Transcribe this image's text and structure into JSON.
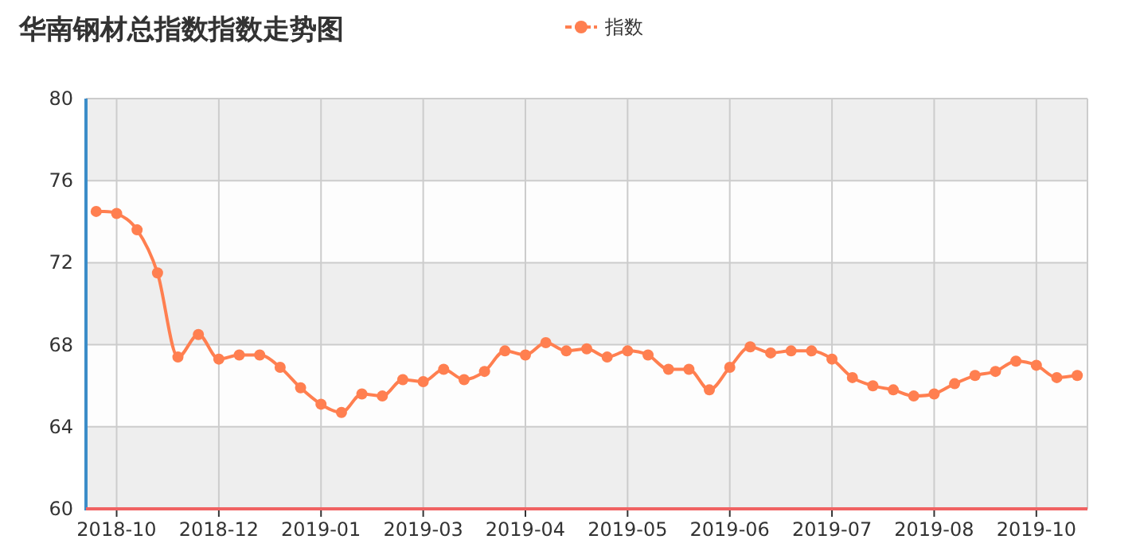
{
  "chart_data": {
    "type": "line",
    "title": "华南钢材总指数指数走势图",
    "categories": [
      null,
      "2018-10",
      null,
      null,
      null,
      null,
      "2018-12",
      null,
      null,
      null,
      null,
      "2019-01",
      null,
      null,
      null,
      null,
      "2019-03",
      null,
      null,
      null,
      null,
      "2019-04",
      null,
      null,
      null,
      null,
      "2019-05",
      null,
      null,
      null,
      null,
      "2019-06",
      null,
      null,
      null,
      null,
      "2019-07",
      null,
      null,
      null,
      null,
      "2019-08",
      null,
      null,
      null,
      null,
      "2019-10",
      null,
      null
    ],
    "series": [
      {
        "name": "指数",
        "color": "#ff7f50",
        "values": [
          74.5,
          74.4,
          73.6,
          71.5,
          67.4,
          68.5,
          67.3,
          67.5,
          67.5,
          66.9,
          65.9,
          65.1,
          64.7,
          65.6,
          65.5,
          66.3,
          66.2,
          66.8,
          66.3,
          66.7,
          67.7,
          67.5,
          68.1,
          67.7,
          67.8,
          67.4,
          67.7,
          67.5,
          66.8,
          66.8,
          65.8,
          66.9,
          67.9,
          67.6,
          67.7,
          67.7,
          67.3,
          66.4,
          66.0,
          65.8,
          65.5,
          65.6,
          66.1,
          66.5,
          66.7,
          67.2,
          67.0,
          66.4,
          66.5
        ]
      }
    ],
    "ylim": [
      60,
      80
    ],
    "yticks": [
      60,
      64,
      68,
      72,
      76,
      80
    ],
    "grid": true,
    "legend": "top",
    "marker": "circle",
    "line_style": "solid"
  }
}
